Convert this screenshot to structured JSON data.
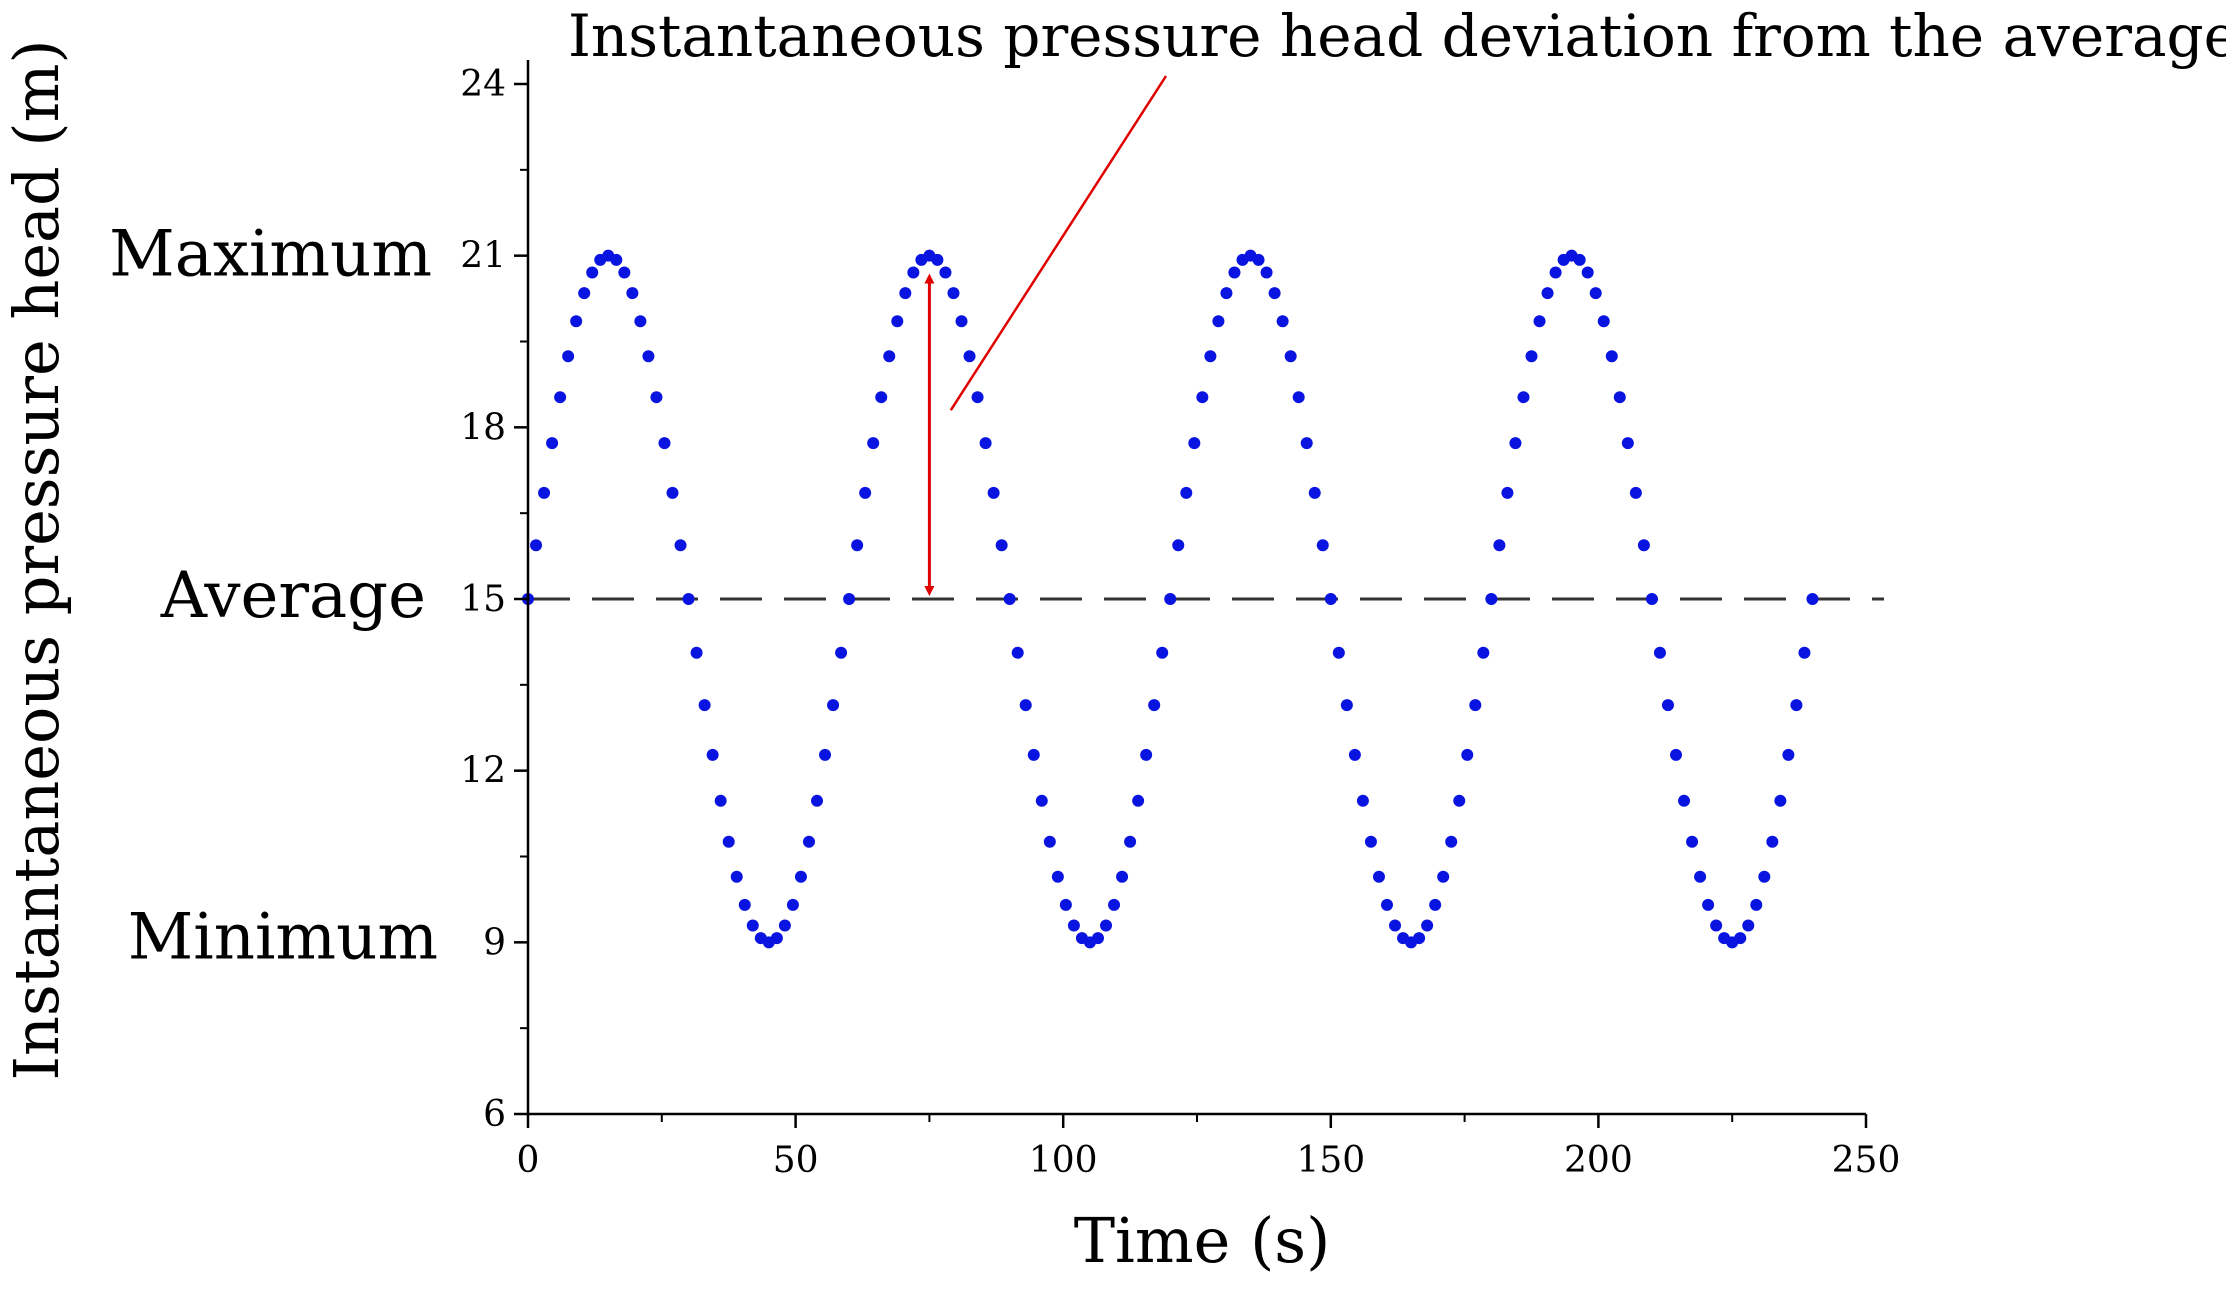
{
  "chart_data": {
    "type": "scatter",
    "title": "Instantaneous pressure head deviation from the average",
    "xlabel": "Time (s)",
    "ylabel": "Instantaneous pressure head (m)",
    "xlim": [
      0,
      250
    ],
    "ylim": [
      6,
      24
    ],
    "xticks": [
      0,
      50,
      100,
      150,
      200,
      250
    ],
    "xtick_labels": [
      "0",
      "50",
      "100",
      "150",
      "200",
      "250"
    ],
    "yticks": [
      6,
      9,
      12,
      15,
      18,
      21,
      24
    ],
    "ytick_labels": [
      "6",
      "9",
      "12",
      "15",
      "18",
      "21",
      "24"
    ],
    "series": [
      {
        "name": "pressure head",
        "color": "#0a14e0",
        "model": "average + amplitude * sin(2*pi*t/period)",
        "average": 15,
        "amplitude": 6,
        "period": 60,
        "t_start": 0,
        "t_end": 240,
        "t_step": 1.5
      }
    ],
    "reference_line": {
      "label": "Average",
      "y": 15,
      "style": "dashed",
      "color": "#333333"
    },
    "annotations": {
      "maximum": {
        "text": "Maximum",
        "y": 21
      },
      "average": {
        "text": "Average",
        "y": 15
      },
      "minimum": {
        "text": "Minimum",
        "y": 9
      },
      "deviation_arrow": {
        "x": 75,
        "y_from": 15,
        "y_to": 20.6,
        "color": "#e00000"
      },
      "pointer_line": {
        "color": "#e00000",
        "from": [
          79,
          18.3
        ],
        "to_label": true
      }
    }
  }
}
